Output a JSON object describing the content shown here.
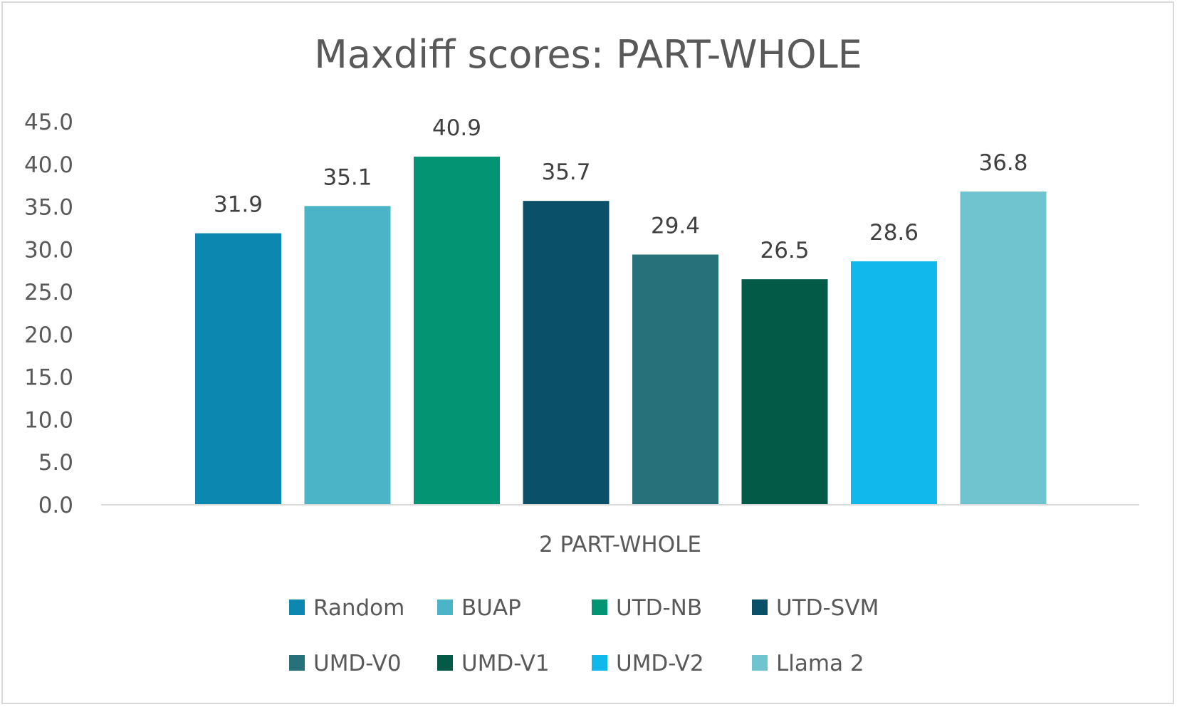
{
  "chart_data": {
    "type": "bar",
    "title": "Maxdiff scores: PART-WHOLE",
    "categories": [
      "2 PART-WHOLE"
    ],
    "ylim": [
      0,
      45
    ],
    "yticks": [
      "0.0",
      "5.0",
      "10.0",
      "15.0",
      "20.0",
      "25.0",
      "30.0",
      "35.0",
      "40.0",
      "45.0"
    ],
    "grid": false,
    "legend": "bottom",
    "series": [
      {
        "name": "Random",
        "value": 31.9,
        "label": "31.9",
        "color": "#0b87b0"
      },
      {
        "name": "BUAP",
        "value": 35.1,
        "label": "35.1",
        "color": "#4bb4c6"
      },
      {
        "name": "UTD-NB",
        "value": 40.9,
        "label": "40.9",
        "color": "#039474"
      },
      {
        "name": "UTD-SVM",
        "value": 35.7,
        "label": "35.7",
        "color": "#0a5068"
      },
      {
        "name": "UMD-V0",
        "value": 29.4,
        "label": "29.4",
        "color": "#27717a"
      },
      {
        "name": "UMD-V1",
        "value": 26.5,
        "label": "26.5",
        "color": "#035a46"
      },
      {
        "name": "UMD-V2",
        "value": 28.6,
        "label": "28.6",
        "color": "#10b8ec"
      },
      {
        "name": "Llama 2",
        "value": 36.8,
        "label": "36.8",
        "color": "#70c4d0"
      }
    ]
  },
  "colors": {
    "axis": "#d9d9d9",
    "text": "#595959"
  }
}
